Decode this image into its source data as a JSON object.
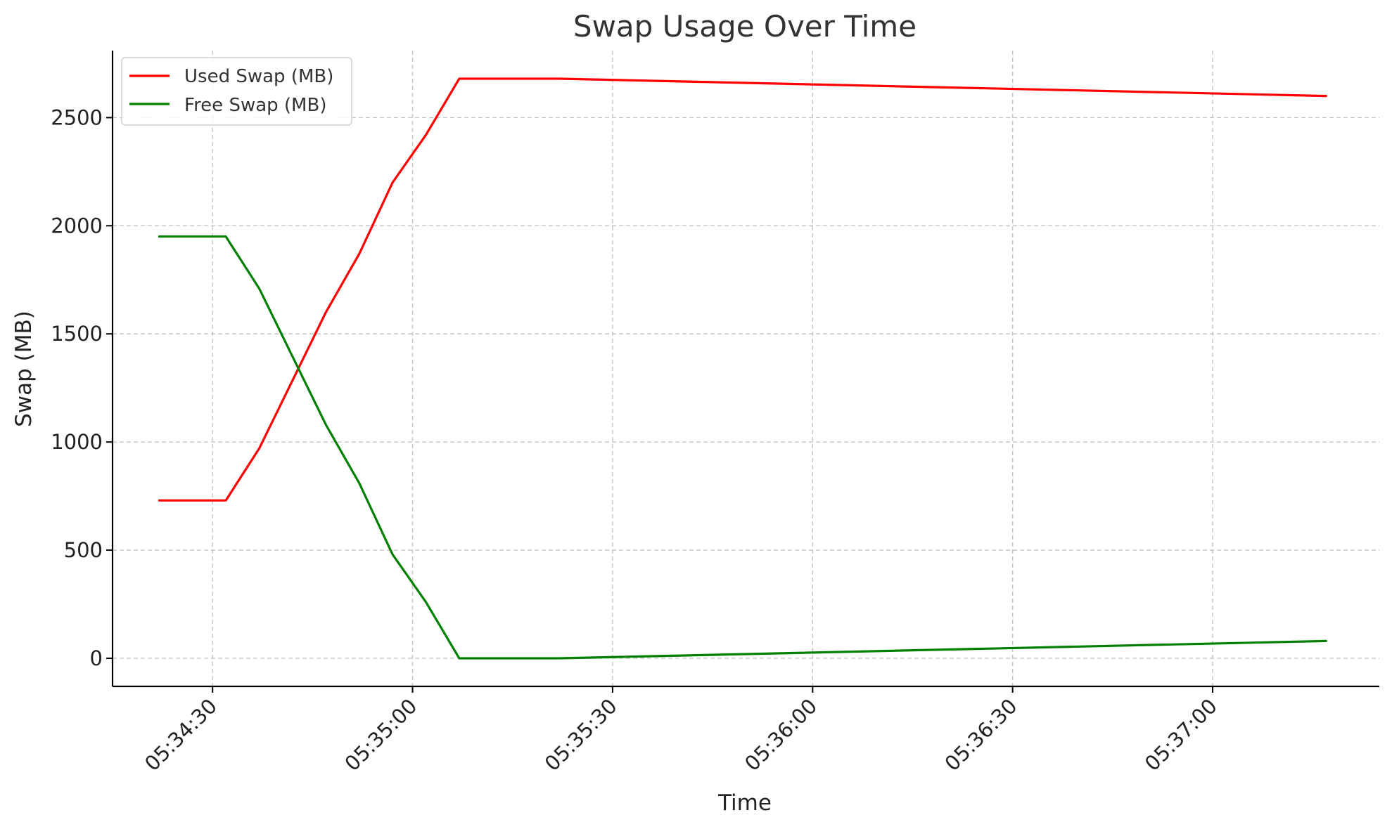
{
  "chart_data": {
    "type": "line",
    "title": "Swap Usage Over Time",
    "xlabel": "Time",
    "ylabel": "Swap (MB)",
    "x": [
      "05:34:22",
      "05:34:32",
      "05:34:37",
      "05:34:47",
      "05:34:52",
      "05:34:57",
      "05:35:02",
      "05:35:07",
      "05:35:22",
      "05:37:17"
    ],
    "xticks": [
      "05:34:30",
      "05:35:00",
      "05:35:30",
      "05:36:00",
      "05:36:30",
      "05:37:00"
    ],
    "xlim": [
      "05:34:15",
      "05:37:25"
    ],
    "yticks": [
      "0",
      "500",
      "1000",
      "1500",
      "2000",
      "2500"
    ],
    "ylim": [
      -130,
      2810
    ],
    "series": [
      {
        "name": "Used Swap (MB)",
        "color": "#ff0000",
        "values": [
          730,
          730,
          970,
          1600,
          1870,
          2200,
          2420,
          2680,
          2680,
          2600
        ]
      },
      {
        "name": "Free Swap (MB)",
        "color": "#008000",
        "values": [
          1950,
          1950,
          1710,
          1080,
          810,
          480,
          260,
          0,
          0,
          80
        ]
      }
    ],
    "grid": true,
    "legend_position": "top-left"
  }
}
